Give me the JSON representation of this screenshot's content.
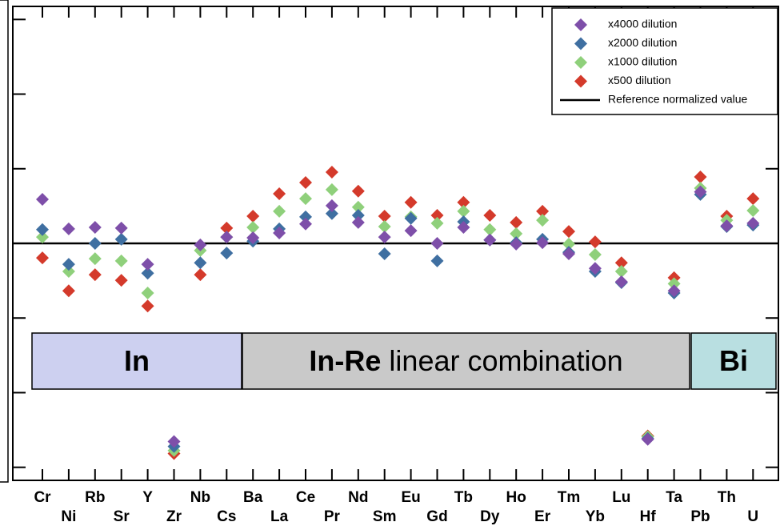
{
  "chart_data": {
    "type": "scatter",
    "categories": [
      "Cr",
      "Ni",
      "Rb",
      "Sr",
      "Y",
      "Zr",
      "Nb",
      "Cs",
      "Ba",
      "La",
      "Ce",
      "Pr",
      "Nd",
      "Sm",
      "Eu",
      "Gd",
      "Tb",
      "Dy",
      "Ho",
      "Er",
      "Tm",
      "Yb",
      "Lu",
      "Hf",
      "Ta",
      "Pb",
      "Th",
      "U"
    ],
    "series": [
      {
        "name": "x4000 dilution",
        "color": "#7e4fa9",
        "values": [
          1.118,
          1.039,
          1.043,
          1.041,
          0.944,
          0.469,
          0.996,
          1.017,
          1.015,
          1.028,
          1.052,
          1.101,
          1.056,
          1.017,
          1.034,
          1.0,
          1.043,
          1.009,
          0.998,
          1.002,
          0.972,
          0.933,
          0.897,
          0.475,
          0.873,
          1.138,
          1.047,
          1.054
        ]
      },
      {
        "name": "x2000 dilution",
        "color": "#3f6fa1",
        "values": [
          1.037,
          0.944,
          1.0,
          1.011,
          0.92,
          0.456,
          0.948,
          0.974,
          1.006,
          1.039,
          1.071,
          1.08,
          1.075,
          0.972,
          1.067,
          0.953,
          1.058,
          1.009,
          1.002,
          1.011,
          0.976,
          0.925,
          0.895,
          0.477,
          0.867,
          1.131,
          1.045,
          1.049
        ]
      },
      {
        "name": "x1000 dilution",
        "color": "#8fd07b",
        "values": [
          1.017,
          0.925,
          0.959,
          0.953,
          0.867,
          0.445,
          0.981,
          1.017,
          1.043,
          1.086,
          1.12,
          1.144,
          1.097,
          1.045,
          1.071,
          1.054,
          1.086,
          1.037,
          1.026,
          1.062,
          0.998,
          0.97,
          0.925,
          0.482,
          0.892,
          1.148,
          1.062,
          1.088
        ]
      },
      {
        "name": "x500 dilution",
        "color": "#d43a2b",
        "values": [
          0.961,
          0.873,
          0.916,
          0.901,
          0.832,
          0.437,
          0.916,
          1.041,
          1.073,
          1.133,
          1.163,
          1.191,
          1.14,
          1.073,
          1.11,
          1.075,
          1.11,
          1.075,
          1.056,
          1.086,
          1.032,
          1.004,
          0.948,
          0.484,
          0.908,
          1.178,
          1.073,
          1.12
        ]
      }
    ],
    "reference_line": {
      "name": "Reference normalized value",
      "value": 1,
      "color": "#000000"
    },
    "ylim": [
      0.365,
      1.635
    ],
    "yticks": [
      0.4,
      0.6,
      0.8,
      1.0,
      1.2,
      1.4,
      1.6
    ],
    "bands": [
      {
        "bold": "In",
        "color": "#cdd0f0"
      },
      {
        "bold": "In-Re",
        "text": "linear combination",
        "color": "#c9c9c9"
      },
      {
        "bold": "Bi",
        "color": "#b9dfe1"
      }
    ],
    "legend": "upper right"
  }
}
